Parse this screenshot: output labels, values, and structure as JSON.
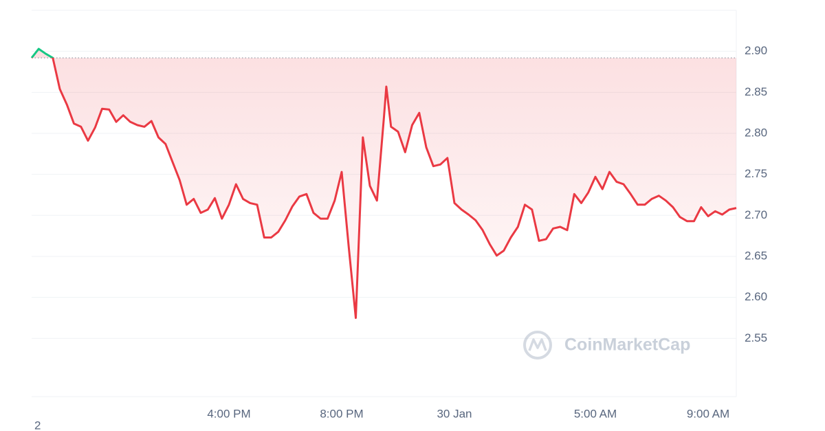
{
  "chart_data": {
    "type": "line",
    "x": [
      "29 Jan 09:00",
      "29 Jan 09:15",
      "29 Jan 09:30",
      "29 Jan 09:45",
      "29 Jan 10:00",
      "29 Jan 10:15",
      "29 Jan 10:30",
      "29 Jan 10:45",
      "29 Jan 11:00",
      "29 Jan 11:15",
      "29 Jan 11:30",
      "29 Jan 11:45",
      "29 Jan 12:00",
      "29 Jan 12:15",
      "29 Jan 12:30",
      "29 Jan 12:45",
      "29 Jan 13:00",
      "29 Jan 13:15",
      "29 Jan 13:30",
      "29 Jan 13:45",
      "29 Jan 14:00",
      "29 Jan 14:15",
      "29 Jan 14:30",
      "29 Jan 14:45",
      "29 Jan 15:00",
      "29 Jan 15:15",
      "29 Jan 15:30",
      "29 Jan 15:45",
      "29 Jan 16:00",
      "29 Jan 16:15",
      "29 Jan 16:30",
      "29 Jan 16:45",
      "29 Jan 17:00",
      "29 Jan 17:15",
      "29 Jan 17:30",
      "29 Jan 17:45",
      "29 Jan 18:00",
      "29 Jan 18:15",
      "29 Jan 18:30",
      "29 Jan 18:45",
      "29 Jan 19:00",
      "29 Jan 19:15",
      "29 Jan 19:30",
      "29 Jan 19:45",
      "29 Jan 20:00",
      "29 Jan 20:15",
      "29 Jan 20:30",
      "29 Jan 20:45",
      "29 Jan 21:00",
      "29 Jan 21:15",
      "29 Jan 21:30",
      "29 Jan 21:35",
      "29 Jan 21:45",
      "29 Jan 22:00",
      "29 Jan 22:15",
      "29 Jan 22:30",
      "29 Jan 22:45",
      "29 Jan 23:00",
      "29 Jan 23:15",
      "29 Jan 23:30",
      "29 Jan 23:45",
      "30 Jan 00:00",
      "30 Jan 00:15",
      "30 Jan 00:30",
      "30 Jan 00:45",
      "30 Jan 01:00",
      "30 Jan 01:15",
      "30 Jan 01:30",
      "30 Jan 01:45",
      "30 Jan 02:00",
      "30 Jan 02:15",
      "30 Jan 02:30",
      "30 Jan 02:45",
      "30 Jan 03:00",
      "30 Jan 03:15",
      "30 Jan 03:30",
      "30 Jan 03:45",
      "30 Jan 04:00",
      "30 Jan 04:15",
      "30 Jan 04:30",
      "30 Jan 04:45",
      "30 Jan 05:00",
      "30 Jan 05:15",
      "30 Jan 05:30",
      "30 Jan 05:45",
      "30 Jan 06:00",
      "30 Jan 06:15",
      "30 Jan 06:30",
      "30 Jan 06:45",
      "30 Jan 07:00",
      "30 Jan 07:15",
      "30 Jan 07:30",
      "30 Jan 07:45",
      "30 Jan 08:00",
      "30 Jan 08:15",
      "30 Jan 08:30",
      "30 Jan 08:45",
      "30 Jan 09:00",
      "30 Jan 09:15",
      "30 Jan 09:30",
      "30 Jan 09:45",
      "30 Jan 10:00"
    ],
    "values": [
      2.892,
      2.903,
      2.897,
      2.892,
      2.854,
      2.835,
      2.812,
      2.808,
      2.791,
      2.807,
      2.83,
      2.829,
      2.814,
      2.822,
      2.814,
      2.81,
      2.808,
      2.815,
      2.795,
      2.787,
      2.765,
      2.743,
      2.713,
      2.72,
      2.703,
      2.707,
      2.721,
      2.696,
      2.713,
      2.738,
      2.72,
      2.715,
      2.713,
      2.673,
      2.673,
      2.68,
      2.694,
      2.711,
      2.723,
      2.726,
      2.703,
      2.696,
      2.696,
      2.718,
      2.753,
      2.661,
      2.575,
      2.795,
      2.736,
      2.718,
      2.82,
      2.857,
      2.808,
      2.802,
      2.777,
      2.81,
      2.825,
      2.783,
      2.76,
      2.762,
      2.77,
      2.715,
      2.707,
      2.701,
      2.694,
      2.682,
      2.665,
      2.651,
      2.657,
      2.673,
      2.686,
      2.713,
      2.707,
      2.669,
      2.671,
      2.684,
      2.686,
      2.682,
      2.726,
      2.715,
      2.728,
      2.747,
      2.732,
      2.753,
      2.741,
      2.738,
      2.726,
      2.713,
      2.713,
      2.72,
      2.724,
      2.718,
      2.71,
      2.698,
      2.693,
      2.693,
      2.71,
      2.699,
      2.705,
      2.701,
      2.707,
      2.709
    ],
    "color": "#ea3943",
    "color_above": "#16c784",
    "reference": 2.892,
    "xlim": [
      "29 Jan 09:00",
      "30 Jan 10:00"
    ],
    "xticks": [
      {
        "value": "29 Jan 16:00",
        "label": "4:00 PM"
      },
      {
        "value": "29 Jan 20:00",
        "label": "8:00 PM"
      },
      {
        "value": "30 Jan 00:00",
        "label": "30 Jan"
      },
      {
        "value": "30 Jan 05:00",
        "label": "5:00 AM"
      },
      {
        "value": "30 Jan 09:00",
        "label": "9:00 AM"
      }
    ],
    "ylim": [
      2.479,
      2.95
    ],
    "yticks": [
      2.55,
      {
        "value": 2.6,
        "label": "2.60"
      },
      2.65,
      {
        "value": 2.7,
        "label": "2.70"
      },
      2.75,
      {
        "value": 2.8,
        "label": "2.80"
      },
      2.85,
      {
        "value": 2.9,
        "label": "2.90"
      }
    ],
    "grid": true,
    "watermark": "CoinMarketCap",
    "footer_text": "2"
  }
}
